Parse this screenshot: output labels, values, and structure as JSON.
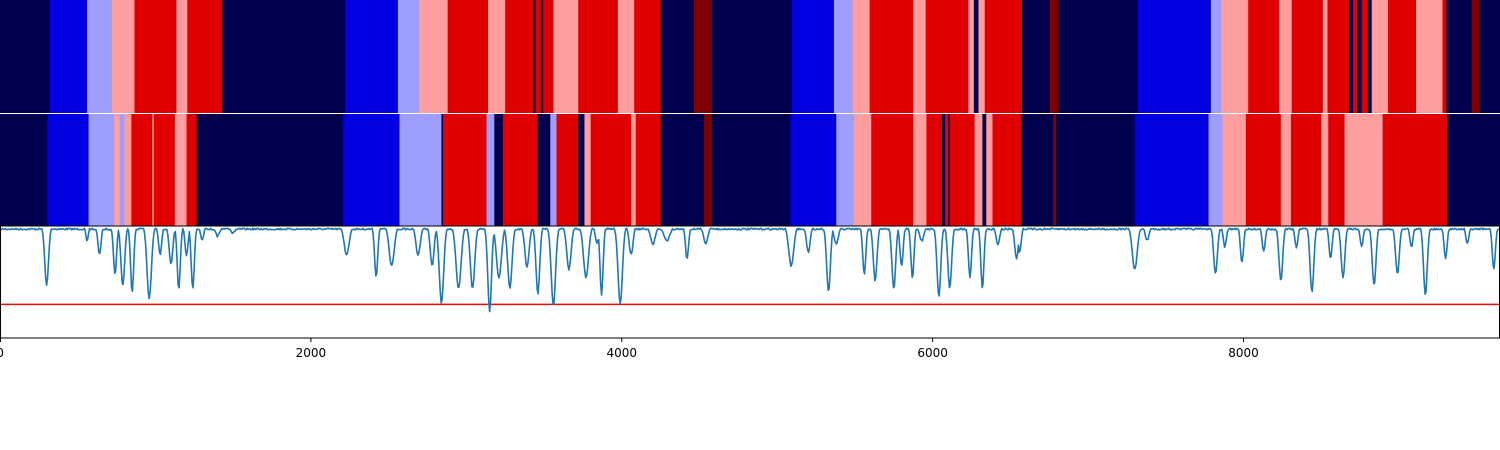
{
  "chart_data": {
    "type": "segmentation-strips-with-line",
    "xlim": [
      0,
      9650
    ],
    "xticks": [
      0,
      2000,
      4000,
      6000,
      8000
    ],
    "xtick_labels": [
      "0",
      "2000",
      "4000",
      "6000",
      "8000"
    ],
    "palette": {
      "N": "#00004c",
      "B": "#0000e0",
      "LB": "#9e9eff",
      "LR": "#ff9e9e",
      "R": "#e00000",
      "DR": "#800000",
      "divider": "#ffffff"
    },
    "strip_top_segments": [
      [
        0,
        320,
        "N"
      ],
      [
        320,
        560,
        "B"
      ],
      [
        560,
        720,
        "LB"
      ],
      [
        720,
        865,
        "LR"
      ],
      [
        865,
        1135,
        "R"
      ],
      [
        1135,
        1205,
        "LR"
      ],
      [
        1205,
        1430,
        "R"
      ],
      [
        1430,
        2220,
        "N"
      ],
      [
        2220,
        2560,
        "B"
      ],
      [
        2560,
        2695,
        "LB"
      ],
      [
        2695,
        2880,
        "LR"
      ],
      [
        2880,
        3140,
        "R"
      ],
      [
        3140,
        3250,
        "LR"
      ],
      [
        3250,
        3430,
        "R"
      ],
      [
        3430,
        3445,
        "N"
      ],
      [
        3445,
        3480,
        "R"
      ],
      [
        3480,
        3495,
        "N"
      ],
      [
        3495,
        3560,
        "R"
      ],
      [
        3560,
        3720,
        "LR"
      ],
      [
        3720,
        3975,
        "R"
      ],
      [
        3975,
        4080,
        "LR"
      ],
      [
        4080,
        4250,
        "R"
      ],
      [
        4250,
        4465,
        "N"
      ],
      [
        4465,
        4580,
        "DR"
      ],
      [
        4580,
        5095,
        "N"
      ],
      [
        5095,
        5365,
        "B"
      ],
      [
        5365,
        5485,
        "LB"
      ],
      [
        5485,
        5595,
        "LR"
      ],
      [
        5595,
        5875,
        "R"
      ],
      [
        5875,
        5955,
        "LR"
      ],
      [
        5955,
        6230,
        "R"
      ],
      [
        6230,
        6265,
        "LR"
      ],
      [
        6265,
        6295,
        "N"
      ],
      [
        6295,
        6335,
        "LR"
      ],
      [
        6335,
        6575,
        "R"
      ],
      [
        6575,
        6755,
        "N"
      ],
      [
        6755,
        6810,
        "DR"
      ],
      [
        6810,
        7320,
        "N"
      ],
      [
        7320,
        7790,
        "B"
      ],
      [
        7790,
        7855,
        "LB"
      ],
      [
        7855,
        8030,
        "LR"
      ],
      [
        8030,
        8230,
        "R"
      ],
      [
        8230,
        8310,
        "LR"
      ],
      [
        8310,
        8510,
        "R"
      ],
      [
        8510,
        8540,
        "LR"
      ],
      [
        8540,
        8680,
        "R"
      ],
      [
        8680,
        8705,
        "N"
      ],
      [
        8705,
        8730,
        "R"
      ],
      [
        8730,
        8760,
        "N"
      ],
      [
        8760,
        8800,
        "R"
      ],
      [
        8800,
        8825,
        "N"
      ],
      [
        8825,
        8930,
        "LR"
      ],
      [
        8930,
        9110,
        "R"
      ],
      [
        9110,
        9280,
        "LR"
      ],
      [
        9280,
        9305,
        "R"
      ],
      [
        9305,
        9470,
        "N"
      ],
      [
        9470,
        9520,
        "DR"
      ],
      [
        9520,
        9650,
        "N"
      ]
    ],
    "strip_bottom_segments": [
      [
        0,
        305,
        "N"
      ],
      [
        305,
        570,
        "B"
      ],
      [
        570,
        735,
        "LB"
      ],
      [
        735,
        770,
        "LR"
      ],
      [
        770,
        800,
        "LB"
      ],
      [
        800,
        845,
        "LR"
      ],
      [
        845,
        980,
        "R"
      ],
      [
        980,
        990,
        "LR"
      ],
      [
        990,
        1125,
        "R"
      ],
      [
        1125,
        1200,
        "LR"
      ],
      [
        1200,
        1265,
        "R"
      ],
      [
        1265,
        2205,
        "N"
      ],
      [
        2205,
        2570,
        "B"
      ],
      [
        2570,
        2840,
        "LB"
      ],
      [
        2840,
        2850,
        "N"
      ],
      [
        2850,
        3130,
        "R"
      ],
      [
        3130,
        3180,
        "LB"
      ],
      [
        3180,
        3235,
        "N"
      ],
      [
        3235,
        3460,
        "R"
      ],
      [
        3460,
        3540,
        "N"
      ],
      [
        3540,
        3580,
        "LB"
      ],
      [
        3580,
        3720,
        "R"
      ],
      [
        3720,
        3760,
        "N"
      ],
      [
        3760,
        3800,
        "LR"
      ],
      [
        3800,
        4060,
        "R"
      ],
      [
        4060,
        4090,
        "LR"
      ],
      [
        4090,
        4250,
        "R"
      ],
      [
        4250,
        4530,
        "N"
      ],
      [
        4530,
        4580,
        "DR"
      ],
      [
        4580,
        5085,
        "N"
      ],
      [
        5085,
        5380,
        "B"
      ],
      [
        5380,
        5495,
        "LB"
      ],
      [
        5495,
        5605,
        "LR"
      ],
      [
        5605,
        5875,
        "R"
      ],
      [
        5875,
        5960,
        "LR"
      ],
      [
        5960,
        6060,
        "R"
      ],
      [
        6060,
        6080,
        "N"
      ],
      [
        6080,
        6100,
        "R"
      ],
      [
        6100,
        6110,
        "N"
      ],
      [
        6110,
        6270,
        "R"
      ],
      [
        6270,
        6320,
        "LR"
      ],
      [
        6320,
        6345,
        "N"
      ],
      [
        6345,
        6385,
        "LR"
      ],
      [
        6385,
        6570,
        "R"
      ],
      [
        6570,
        6775,
        "N"
      ],
      [
        6775,
        6795,
        "DR"
      ],
      [
        6795,
        7300,
        "N"
      ],
      [
        7300,
        7775,
        "B"
      ],
      [
        7775,
        7865,
        "LB"
      ],
      [
        7865,
        8015,
        "LR"
      ],
      [
        8015,
        8240,
        "R"
      ],
      [
        8240,
        8305,
        "LR"
      ],
      [
        8305,
        8500,
        "R"
      ],
      [
        8500,
        8545,
        "LR"
      ],
      [
        8545,
        8650,
        "R"
      ],
      [
        8650,
        8895,
        "LR"
      ],
      [
        8895,
        9310,
        "R"
      ],
      [
        9310,
        9650,
        "N"
      ]
    ],
    "line_series": {
      "color": "#1f77b4",
      "ylim": [
        0,
        1
      ],
      "baseline": 0.02,
      "dips": [
        [
          300,
          0.52,
          12
        ],
        [
          560,
          0.12,
          8
        ],
        [
          640,
          0.25,
          10
        ],
        [
          740,
          0.42,
          10
        ],
        [
          790,
          0.52,
          12
        ],
        [
          850,
          0.58,
          10
        ],
        [
          960,
          0.64,
          14
        ],
        [
          1030,
          0.25,
          10
        ],
        [
          1100,
          0.32,
          12
        ],
        [
          1150,
          0.55,
          10
        ],
        [
          1200,
          0.25,
          10
        ],
        [
          1240,
          0.55,
          10
        ],
        [
          1300,
          0.12,
          10
        ],
        [
          1400,
          0.08,
          14
        ],
        [
          1500,
          0.05,
          16
        ],
        [
          2230,
          0.25,
          16
        ],
        [
          2420,
          0.45,
          10
        ],
        [
          2520,
          0.35,
          16
        ],
        [
          2690,
          0.25,
          14
        ],
        [
          2780,
          0.35,
          12
        ],
        [
          2840,
          0.68,
          14
        ],
        [
          2950,
          0.55,
          16
        ],
        [
          3040,
          0.55,
          14
        ],
        [
          3150,
          0.75,
          12
        ],
        [
          3210,
          0.45,
          16
        ],
        [
          3280,
          0.55,
          14
        ],
        [
          3390,
          0.35,
          14
        ],
        [
          3460,
          0.6,
          12
        ],
        [
          3560,
          0.7,
          14
        ],
        [
          3660,
          0.38,
          14
        ],
        [
          3770,
          0.45,
          16
        ],
        [
          3840,
          0.15,
          10
        ],
        [
          3870,
          0.6,
          10
        ],
        [
          3990,
          0.68,
          14
        ],
        [
          4060,
          0.25,
          12
        ],
        [
          4200,
          0.15,
          16
        ],
        [
          4290,
          0.12,
          20
        ],
        [
          4420,
          0.28,
          10
        ],
        [
          4540,
          0.15,
          14
        ],
        [
          5090,
          0.35,
          16
        ],
        [
          5200,
          0.22,
          12
        ],
        [
          5330,
          0.58,
          12
        ],
        [
          5380,
          0.15,
          14
        ],
        [
          5560,
          0.42,
          10
        ],
        [
          5630,
          0.48,
          12
        ],
        [
          5750,
          0.55,
          12
        ],
        [
          5800,
          0.35,
          10
        ],
        [
          5870,
          0.45,
          10
        ],
        [
          5930,
          0.12,
          14
        ],
        [
          6040,
          0.62,
          12
        ],
        [
          6110,
          0.55,
          12
        ],
        [
          6240,
          0.45,
          10
        ],
        [
          6320,
          0.55,
          10
        ],
        [
          6420,
          0.15,
          12
        ],
        [
          6540,
          0.28,
          12
        ],
        [
          6560,
          0.22,
          10
        ],
        [
          7300,
          0.38,
          16
        ],
        [
          7380,
          0.12,
          12
        ],
        [
          7820,
          0.42,
          12
        ],
        [
          7880,
          0.18,
          10
        ],
        [
          7990,
          0.32,
          10
        ],
        [
          8130,
          0.22,
          10
        ],
        [
          8240,
          0.48,
          12
        ],
        [
          8340,
          0.18,
          10
        ],
        [
          8440,
          0.58,
          12
        ],
        [
          8560,
          0.28,
          10
        ],
        [
          8640,
          0.45,
          12
        ],
        [
          8760,
          0.18,
          10
        ],
        [
          8840,
          0.52,
          12
        ],
        [
          8990,
          0.42,
          12
        ],
        [
          9080,
          0.18,
          10
        ],
        [
          9170,
          0.6,
          12
        ],
        [
          9300,
          0.28,
          10
        ],
        [
          9440,
          0.15,
          10
        ],
        [
          9610,
          0.38,
          10
        ]
      ]
    },
    "threshold": {
      "value": 0.7,
      "color": "#ff0000"
    }
  }
}
